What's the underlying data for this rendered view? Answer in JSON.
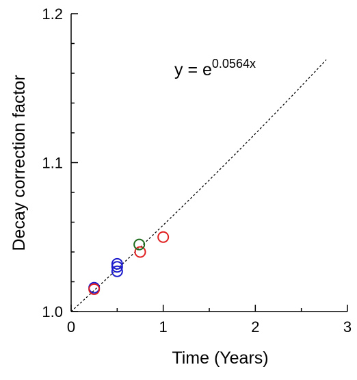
{
  "chart_data": {
    "type": "scatter",
    "title": "",
    "xlabel": "Time (Years)",
    "ylabel": "Decay correction factor",
    "xlim": [
      0,
      3
    ],
    "ylim": [
      1.0,
      1.2
    ],
    "x_ticks": [
      "0",
      "1",
      "2",
      "3"
    ],
    "y_ticks": [
      "1.0",
      "1.1",
      "1.2"
    ],
    "grid": false,
    "equation": {
      "prefix": "y = e",
      "exponent": "0.0564x"
    },
    "fit_line": {
      "style": "dashed",
      "color": "#000000",
      "x_range": [
        0,
        2.77
      ],
      "rate": 0.0564
    },
    "series": [
      {
        "color": "#1a1acc",
        "marker": "open-circle",
        "points": [
          {
            "x": 0.25,
            "y": 1.016
          },
          {
            "x": 0.5,
            "y": 1.032
          },
          {
            "x": 0.5,
            "y": 1.03
          },
          {
            "x": 0.5,
            "y": 1.027
          }
        ]
      },
      {
        "color": "#e02020",
        "marker": "open-circle",
        "points": [
          {
            "x": 0.25,
            "y": 1.015
          },
          {
            "x": 0.75,
            "y": 1.04
          },
          {
            "x": 1.0,
            "y": 1.05
          }
        ]
      },
      {
        "color": "#1e6b1e",
        "marker": "open-circle",
        "points": [
          {
            "x": 0.74,
            "y": 1.045
          }
        ]
      }
    ]
  }
}
